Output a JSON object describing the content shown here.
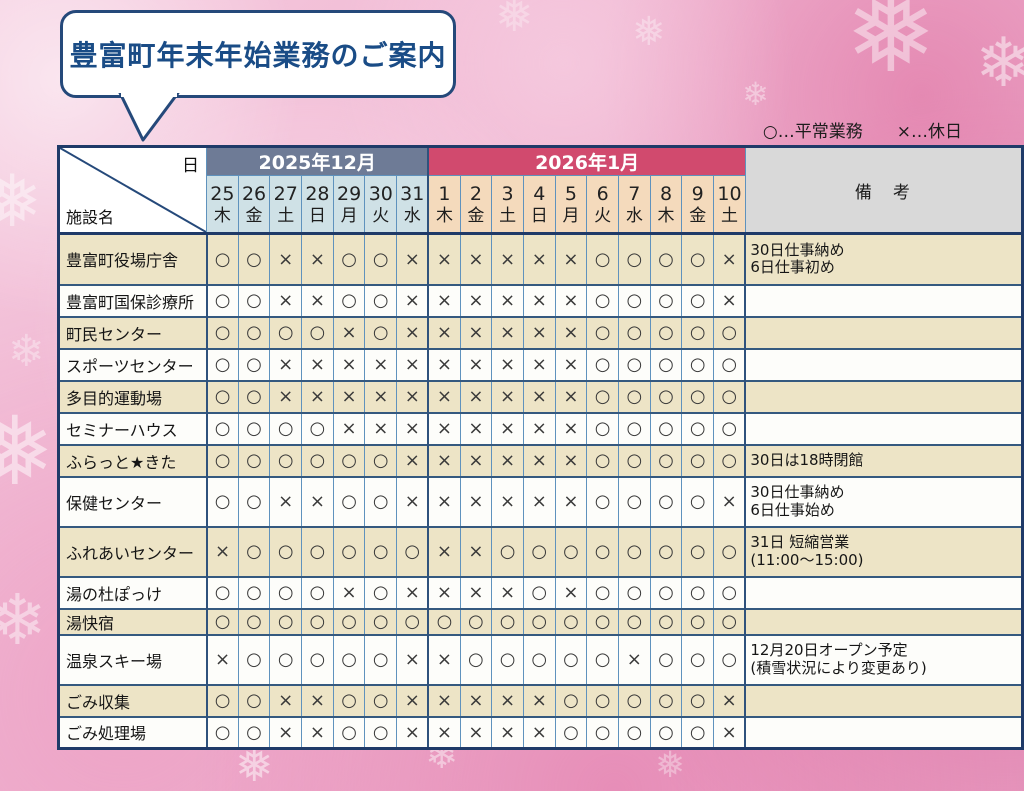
{
  "title": "豊富町年末年始業務のご案内",
  "legend": {
    "open_label": "○…平常業務",
    "closed_label": "×…休日"
  },
  "icons": {
    "snowflake": "❅",
    "snowflake_alt": "❄"
  },
  "colors": {
    "accent_navy": "#25497a",
    "title_blue": "#1a4c86",
    "dec_header": "#6e7b96",
    "jan_header": "#d14a6e",
    "dec_day_bg": "#cfe1e6",
    "jan_day_bg": "#f4dabc",
    "remarks_header_bg": "#d9d9d9",
    "row_cream": "#ede4c6",
    "row_white": "#fdfdfa",
    "background_pink": "#eba9c6"
  },
  "table": {
    "corner_top": "日",
    "corner_bottom": "施設名",
    "remarks_header": "備　考",
    "months": [
      {
        "label": "2025年12月",
        "days": [
          {
            "date": "25",
            "dow": "木"
          },
          {
            "date": "26",
            "dow": "金"
          },
          {
            "date": "27",
            "dow": "土"
          },
          {
            "date": "28",
            "dow": "日"
          },
          {
            "date": "29",
            "dow": "月"
          },
          {
            "date": "30",
            "dow": "火"
          },
          {
            "date": "31",
            "dow": "水"
          }
        ]
      },
      {
        "label": "2026年1月",
        "days": [
          {
            "date": "1",
            "dow": "木"
          },
          {
            "date": "2",
            "dow": "金"
          },
          {
            "date": "3",
            "dow": "土"
          },
          {
            "date": "4",
            "dow": "日"
          },
          {
            "date": "5",
            "dow": "月"
          },
          {
            "date": "6",
            "dow": "火"
          },
          {
            "date": "7",
            "dow": "水"
          },
          {
            "date": "8",
            "dow": "木"
          },
          {
            "date": "9",
            "dow": "金"
          },
          {
            "date": "10",
            "dow": "土"
          }
        ]
      }
    ],
    "rows": [
      {
        "name": "豊富町役場庁舎",
        "marks": [
          "○",
          "○",
          "×",
          "×",
          "○",
          "○",
          "×",
          "×",
          "×",
          "×",
          "×",
          "×",
          "○",
          "○",
          "○",
          "○",
          "×"
        ],
        "remark": "30日仕事納め\n6日仕事初め"
      },
      {
        "name": "豊富町国保診療所",
        "marks": [
          "○",
          "○",
          "×",
          "×",
          "○",
          "○",
          "×",
          "×",
          "×",
          "×",
          "×",
          "×",
          "○",
          "○",
          "○",
          "○",
          "×"
        ],
        "remark": ""
      },
      {
        "name": "町民センター",
        "marks": [
          "○",
          "○",
          "○",
          "○",
          "×",
          "○",
          "×",
          "×",
          "×",
          "×",
          "×",
          "×",
          "○",
          "○",
          "○",
          "○",
          "○"
        ],
        "remark": ""
      },
      {
        "name": "スポーツセンター",
        "marks": [
          "○",
          "○",
          "×",
          "×",
          "×",
          "×",
          "×",
          "×",
          "×",
          "×",
          "×",
          "×",
          "○",
          "○",
          "○",
          "○",
          "○"
        ],
        "remark": ""
      },
      {
        "name": "多目的運動場",
        "marks": [
          "○",
          "○",
          "×",
          "×",
          "×",
          "×",
          "×",
          "×",
          "×",
          "×",
          "×",
          "×",
          "○",
          "○",
          "○",
          "○",
          "○"
        ],
        "remark": ""
      },
      {
        "name": "セミナーハウス",
        "marks": [
          "○",
          "○",
          "○",
          "○",
          "×",
          "×",
          "×",
          "×",
          "×",
          "×",
          "×",
          "×",
          "○",
          "○",
          "○",
          "○",
          "○"
        ],
        "remark": ""
      },
      {
        "name": "ふらっと★きた",
        "marks": [
          "○",
          "○",
          "○",
          "○",
          "○",
          "○",
          "×",
          "×",
          "×",
          "×",
          "×",
          "×",
          "○",
          "○",
          "○",
          "○",
          "○"
        ],
        "remark": "30日は18時閉館"
      },
      {
        "name": "保健センター",
        "marks": [
          "○",
          "○",
          "×",
          "×",
          "○",
          "○",
          "×",
          "×",
          "×",
          "×",
          "×",
          "×",
          "○",
          "○",
          "○",
          "○",
          "×"
        ],
        "remark": "30日仕事納め\n6日仕事始め"
      },
      {
        "name": "ふれあいセンター",
        "marks": [
          "×",
          "○",
          "○",
          "○",
          "○",
          "○",
          "○",
          "×",
          "×",
          "○",
          "○",
          "○",
          "○",
          "○",
          "○",
          "○",
          "○"
        ],
        "remark": "31日 短縮営業\n(11:00～15:00)"
      },
      {
        "name": "湯の杜ぽっけ",
        "marks": [
          "○",
          "○",
          "○",
          "○",
          "×",
          "○",
          "×",
          "×",
          "×",
          "×",
          "○",
          "×",
          "○",
          "○",
          "○",
          "○",
          "○"
        ],
        "remark": ""
      },
      {
        "name": "湯快宿",
        "marks": [
          "○",
          "○",
          "○",
          "○",
          "○",
          "○",
          "○",
          "○",
          "○",
          "○",
          "○",
          "○",
          "○",
          "○",
          "○",
          "○",
          "○"
        ],
        "remark": ""
      },
      {
        "name": "温泉スキー場",
        "marks": [
          "×",
          "○",
          "○",
          "○",
          "○",
          "○",
          "×",
          "×",
          "○",
          "○",
          "○",
          "○",
          "○",
          "×",
          "○",
          "○",
          "○"
        ],
        "remark": "12月20日オープン予定\n(積雪状況により変更あり)"
      },
      {
        "name": "ごみ収集",
        "marks": [
          "○",
          "○",
          "×",
          "×",
          "○",
          "○",
          "×",
          "×",
          "×",
          "×",
          "×",
          "○",
          "○",
          "○",
          "○",
          "○",
          "×"
        ],
        "remark": ""
      },
      {
        "name": "ごみ処理場",
        "marks": [
          "○",
          "○",
          "×",
          "×",
          "○",
          "○",
          "×",
          "×",
          "×",
          "×",
          "×",
          "○",
          "○",
          "○",
          "○",
          "○",
          "×"
        ],
        "remark": ""
      }
    ]
  }
}
